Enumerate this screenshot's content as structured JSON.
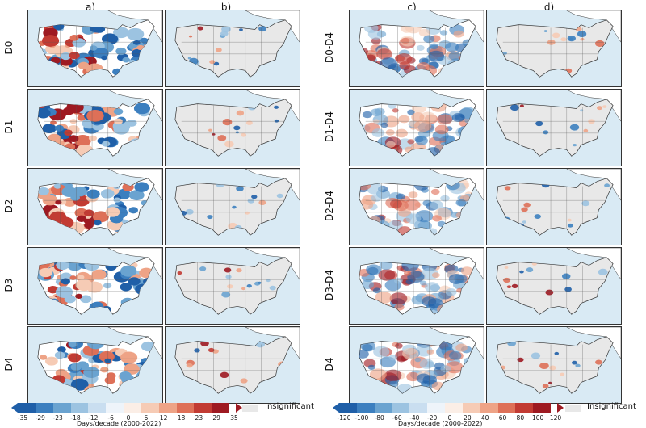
{
  "column_labels": [
    "a)",
    "b)",
    "c)",
    "d)"
  ],
  "left_rows": [
    "D0",
    "D1",
    "D2",
    "D3",
    "D4"
  ],
  "right_rows": [
    "D0-D4",
    "D1-D4",
    "D2-D4",
    "D3-D4",
    "D4"
  ],
  "left_colorbar": {
    "ticks": [
      "-35",
      "-29",
      "-23",
      "-18",
      "-12",
      "-6",
      "0",
      "6",
      "12",
      "18",
      "23",
      "29",
      "35"
    ],
    "title": "Days/decade (2000-2022)",
    "colors": [
      "#1f5fa8",
      "#3c7fbf",
      "#6aa3d0",
      "#9cc3e1",
      "#c9def0",
      "#eef4fa",
      "#fbeee6",
      "#f6cbb5",
      "#eea386",
      "#de7058",
      "#c23b33",
      "#9e1a22"
    ]
  },
  "right_colorbar": {
    "ticks": [
      "-120",
      "-100",
      "-80",
      "-60",
      "-40",
      "-20",
      "0",
      "20",
      "40",
      "60",
      "80",
      "100",
      "120"
    ],
    "title": "Days/decade (2000-2022)",
    "colors": [
      "#1f5fa8",
      "#3c7fbf",
      "#6aa3d0",
      "#9cc3e1",
      "#c9def0",
      "#eef4fa",
      "#fbeee6",
      "#f6cbb5",
      "#eea386",
      "#de7058",
      "#c23b33",
      "#9e1a22"
    ]
  },
  "insignificant_label": "Insignificant",
  "insignificant_color": "#e8e8e8",
  "ocean_color": "#d9eaf4",
  "land_color": "#ffffff"
}
